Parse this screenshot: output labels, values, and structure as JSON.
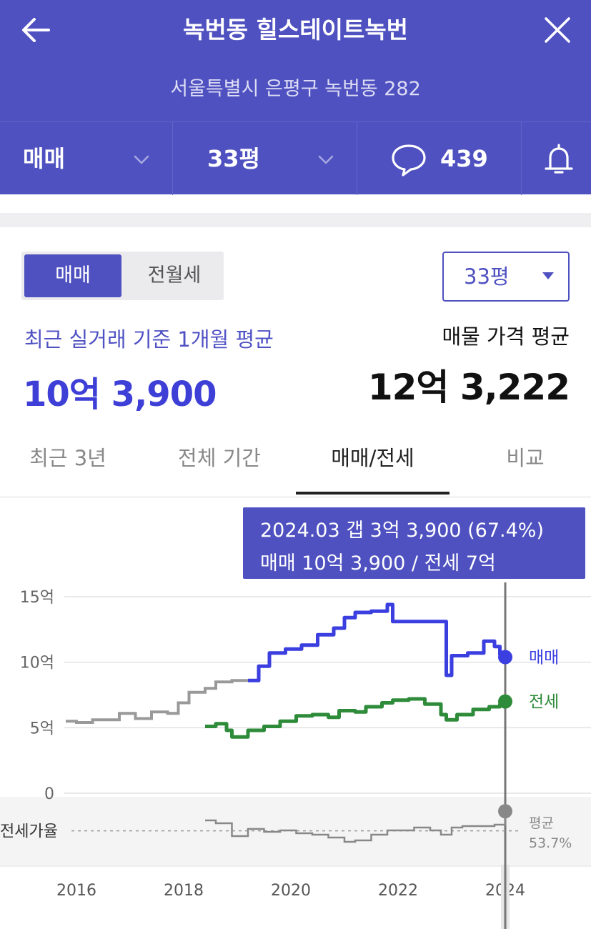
{
  "header": {
    "title": "녹번동 힐스테이트녹번",
    "address": "서울특별시 은평구 녹번동 282",
    "trade_type": "매매",
    "size": "33평",
    "comment_count": "439"
  },
  "filters": {
    "toggle_active": "매매",
    "toggle_inactive": "전월세",
    "size_select": "33평"
  },
  "summary": {
    "recent_label": "최근 실거래 기준 1개월 평균",
    "recent_value": "10억 3,900",
    "listing_label": "매물 가격 평균",
    "listing_value": "12억 3,222"
  },
  "tabs": [
    {
      "label": "최근 3년"
    },
    {
      "label": "전체 기간"
    },
    {
      "label": "매매/전세"
    },
    {
      "label": "비교"
    }
  ],
  "tooltip": {
    "line1": "2024.03  갭 3억 3,900 (67.4%)",
    "line2": "매매 10억 3,900 / 전세 7억"
  },
  "colors": {
    "accent": "#4f51c0",
    "sale": "#3b3fe0",
    "jeonse": "#2e8b3a",
    "ratio": "#888888"
  },
  "chart_data": {
    "type": "line",
    "ylim": [
      0,
      15
    ],
    "y_ticks": [
      "15억",
      "10억",
      "5억",
      "0"
    ],
    "x_ticks": [
      "2016",
      "2018",
      "2020",
      "2022",
      "2024"
    ],
    "series": [
      {
        "name": "매매",
        "points": [
          [
            2015.8,
            5.5
          ],
          [
            2016.0,
            5.4
          ],
          [
            2016.3,
            5.6
          ],
          [
            2016.6,
            5.6
          ],
          [
            2016.8,
            6.1
          ],
          [
            2017.1,
            5.7
          ],
          [
            2017.4,
            6.2
          ],
          [
            2017.7,
            6.1
          ],
          [
            2017.9,
            6.9
          ],
          [
            2018.1,
            7.7
          ],
          [
            2018.4,
            8.0
          ],
          [
            2018.6,
            8.5
          ],
          [
            2018.9,
            8.6
          ],
          [
            2019.2,
            8.6
          ],
          [
            2019.4,
            9.7
          ],
          [
            2019.6,
            10.7
          ],
          [
            2019.9,
            11.0
          ],
          [
            2020.2,
            11.3
          ],
          [
            2020.5,
            12.1
          ],
          [
            2020.8,
            12.6
          ],
          [
            2021.0,
            13.4
          ],
          [
            2021.2,
            13.8
          ],
          [
            2021.5,
            13.9
          ],
          [
            2021.7,
            13.9
          ],
          [
            2021.8,
            14.4
          ],
          [
            2021.9,
            13.1
          ],
          [
            2022.2,
            13.1
          ],
          [
            2022.5,
            13.1
          ],
          [
            2022.7,
            13.1
          ],
          [
            2022.9,
            9.0
          ],
          [
            2023.0,
            10.5
          ],
          [
            2023.3,
            10.7
          ],
          [
            2023.6,
            11.6
          ],
          [
            2023.8,
            11.2
          ],
          [
            2023.9,
            10.6
          ],
          [
            2024.0,
            10.39
          ]
        ]
      },
      {
        "name": "전세",
        "points": [
          [
            2018.4,
            5.1
          ],
          [
            2018.6,
            5.3
          ],
          [
            2018.8,
            4.8
          ],
          [
            2018.9,
            4.3
          ],
          [
            2019.2,
            4.8
          ],
          [
            2019.5,
            5.1
          ],
          [
            2019.8,
            5.5
          ],
          [
            2020.1,
            5.9
          ],
          [
            2020.4,
            6.0
          ],
          [
            2020.7,
            5.8
          ],
          [
            2020.9,
            6.3
          ],
          [
            2021.2,
            6.2
          ],
          [
            2021.4,
            6.6
          ],
          [
            2021.7,
            6.9
          ],
          [
            2021.9,
            7.1
          ],
          [
            2022.2,
            7.2
          ],
          [
            2022.5,
            6.8
          ],
          [
            2022.8,
            6.0
          ],
          [
            2022.9,
            5.6
          ],
          [
            2023.1,
            6.0
          ],
          [
            2023.4,
            6.4
          ],
          [
            2023.7,
            6.6
          ],
          [
            2023.9,
            6.8
          ],
          [
            2024.0,
            7.0
          ]
        ]
      }
    ],
    "ratio": {
      "label": "전세가율",
      "avg_label": "평균",
      "avg_value": "53.7%",
      "points": [
        [
          2018.4,
          61
        ],
        [
          2018.6,
          59
        ],
        [
          2018.9,
          50
        ],
        [
          2019.2,
          55
        ],
        [
          2019.5,
          53
        ],
        [
          2019.8,
          54
        ],
        [
          2020.1,
          52
        ],
        [
          2020.4,
          51
        ],
        [
          2020.7,
          49
        ],
        [
          2021.0,
          46
        ],
        [
          2021.2,
          47
        ],
        [
          2021.5,
          51
        ],
        [
          2021.8,
          54
        ],
        [
          2022.0,
          54
        ],
        [
          2022.3,
          56
        ],
        [
          2022.6,
          54
        ],
        [
          2022.8,
          51
        ],
        [
          2023.0,
          56
        ],
        [
          2023.2,
          57
        ],
        [
          2023.5,
          57
        ],
        [
          2023.8,
          58
        ],
        [
          2024.0,
          67.4
        ]
      ]
    },
    "marker_sale": "매매",
    "marker_jeonse": "전세",
    "tooltip_x": 2024.0
  }
}
